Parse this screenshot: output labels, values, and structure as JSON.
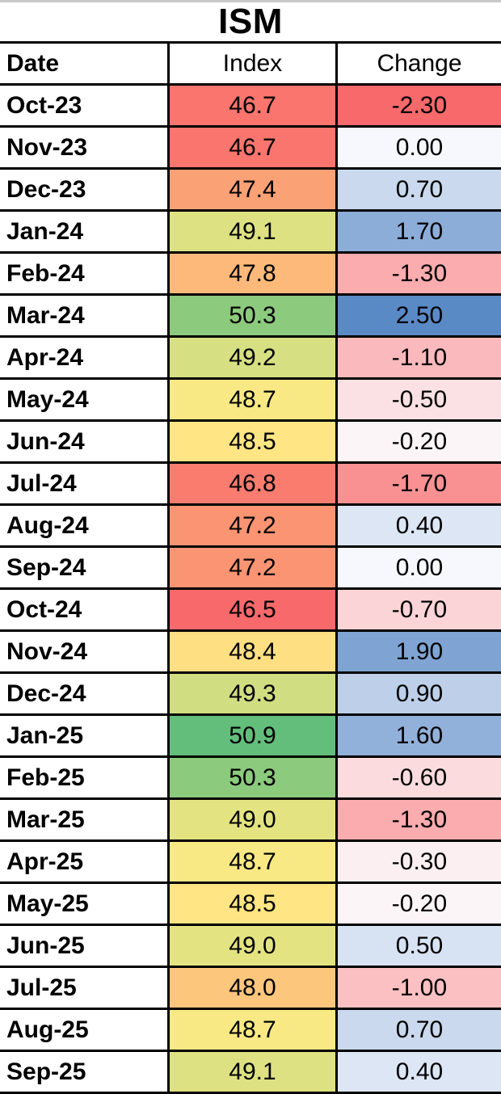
{
  "title": "ISM",
  "columns": {
    "date": "Date",
    "index": "Index",
    "change": "Change"
  },
  "rows": [
    {
      "date": "Oct-23",
      "index": "46.7",
      "change": "-2.30",
      "index_color": "#F9756D",
      "change_color": "#F8696B"
    },
    {
      "date": "Nov-23",
      "index": "46.7",
      "change": "0.00",
      "index_color": "#F9756D",
      "change_color": "#F6F8FD"
    },
    {
      "date": "Dec-23",
      "index": "47.4",
      "change": "0.70",
      "index_color": "#FBA176",
      "change_color": "#CAD9ED"
    },
    {
      "date": "Jan-24",
      "index": "49.1",
      "change": "1.70",
      "index_color": "#DDE182",
      "change_color": "#8CADD8"
    },
    {
      "date": "Feb-24",
      "index": "47.8",
      "change": "-1.30",
      "index_color": "#FCB97A",
      "change_color": "#FAACAE"
    },
    {
      "date": "Mar-24",
      "index": "50.3",
      "change": "2.50",
      "index_color": "#8CCA7D",
      "change_color": "#5A8AC6"
    },
    {
      "date": "Apr-24",
      "index": "49.2",
      "change": "-1.10",
      "index_color": "#D6DF82",
      "change_color": "#FAB9BC"
    },
    {
      "date": "May-24",
      "index": "48.7",
      "change": "-0.50",
      "index_color": "#F8E984",
      "change_color": "#FBE1E4"
    },
    {
      "date": "Jun-24",
      "index": "48.5",
      "change": "-0.20",
      "index_color": "#FFE583",
      "change_color": "#FCF5F8"
    },
    {
      "date": "Jul-24",
      "index": "46.8",
      "change": "-1.70",
      "index_color": "#F97C6F",
      "change_color": "#F99193"
    },
    {
      "date": "Aug-24",
      "index": "47.2",
      "change": "0.40",
      "index_color": "#FA9473",
      "change_color": "#DDE6F4"
    },
    {
      "date": "Sep-24",
      "index": "47.2",
      "change": "0.00",
      "index_color": "#FA9473",
      "change_color": "#F6F8FD"
    },
    {
      "date": "Oct-24",
      "index": "46.5",
      "change": "-0.70",
      "index_color": "#F8696B",
      "change_color": "#FBD4D7"
    },
    {
      "date": "Nov-24",
      "index": "48.4",
      "change": "1.90",
      "index_color": "#FEDF82",
      "change_color": "#7FA4D3"
    },
    {
      "date": "Dec-24",
      "index": "49.3",
      "change": "0.90",
      "index_color": "#D0DD81",
      "change_color": "#BED0E9"
    },
    {
      "date": "Jan-25",
      "index": "50.9",
      "change": "1.60",
      "index_color": "#63BE7B",
      "change_color": "#92B1DA"
    },
    {
      "date": "Feb-25",
      "index": "50.3",
      "change": "-0.60",
      "index_color": "#8CCA7D",
      "change_color": "#FBDBDD"
    },
    {
      "date": "Mar-25",
      "index": "49.0",
      "change": "-1.30",
      "index_color": "#E4E382",
      "change_color": "#FAACAE"
    },
    {
      "date": "Apr-25",
      "index": "48.7",
      "change": "-0.30",
      "index_color": "#F8E984",
      "change_color": "#FCEFF2"
    },
    {
      "date": "May-25",
      "index": "48.5",
      "change": "-0.20",
      "index_color": "#FFE583",
      "change_color": "#FCF5F8"
    },
    {
      "date": "Jun-25",
      "index": "49.0",
      "change": "0.50",
      "index_color": "#E4E382",
      "change_color": "#D7E2F2"
    },
    {
      "date": "Jul-25",
      "index": "48.0",
      "change": "-1.00",
      "index_color": "#FDC67D",
      "change_color": "#FAC0C2"
    },
    {
      "date": "Aug-25",
      "index": "48.7",
      "change": "0.70",
      "index_color": "#F8E984",
      "change_color": "#CAD9ED"
    },
    {
      "date": "Sep-25",
      "index": "49.1",
      "change": "0.40",
      "index_color": "#DDE182",
      "change_color": "#DDE6F4"
    }
  ],
  "colors": {
    "border": "#000000",
    "top_edge_strip": "#C9C9C9",
    "index_scale": {
      "min_red": "#F8696B",
      "mid_yellow": "#FFEB84",
      "max_green": "#63BE7B"
    },
    "change_scale": {
      "min_red": "#F8696B",
      "mid_white": "#FCFCFF",
      "max_blue": "#5A8AC6"
    }
  },
  "chart_data": {
    "type": "table",
    "title": "ISM",
    "columns": [
      "Date",
      "Index",
      "Change"
    ],
    "dates": [
      "Oct-23",
      "Nov-23",
      "Dec-23",
      "Jan-24",
      "Feb-24",
      "Mar-24",
      "Apr-24",
      "May-24",
      "Jun-24",
      "Jul-24",
      "Aug-24",
      "Sep-24",
      "Oct-24",
      "Nov-24",
      "Dec-24",
      "Jan-25",
      "Feb-25",
      "Mar-25",
      "Apr-25",
      "May-25",
      "Jun-25",
      "Jul-25",
      "Aug-25",
      "Sep-25"
    ],
    "series": [
      {
        "name": "Index",
        "values": [
          46.7,
          46.7,
          47.4,
          49.1,
          47.8,
          50.3,
          49.2,
          48.7,
          48.5,
          46.8,
          47.2,
          47.2,
          46.5,
          48.4,
          49.3,
          50.9,
          50.3,
          49.0,
          48.7,
          48.5,
          49.0,
          48.0,
          48.7,
          49.1
        ]
      },
      {
        "name": "Change",
        "values": [
          -2.3,
          0.0,
          0.7,
          1.7,
          -1.3,
          2.5,
          -1.1,
          -0.5,
          -0.2,
          -1.7,
          0.4,
          0.0,
          -0.7,
          1.9,
          0.9,
          1.6,
          -0.6,
          -1.3,
          -0.3,
          -0.2,
          0.5,
          -1.0,
          0.7,
          0.4
        ]
      }
    ],
    "layout_hints": {
      "index_conditional_format": "3-color scale red(min 46.5) -> yellow(mid 48.6) -> green(max 50.9)",
      "change_conditional_format": "3-color scale red(min -2.30) -> white(mid -0.10) -> blue(max 2.50)"
    }
  }
}
